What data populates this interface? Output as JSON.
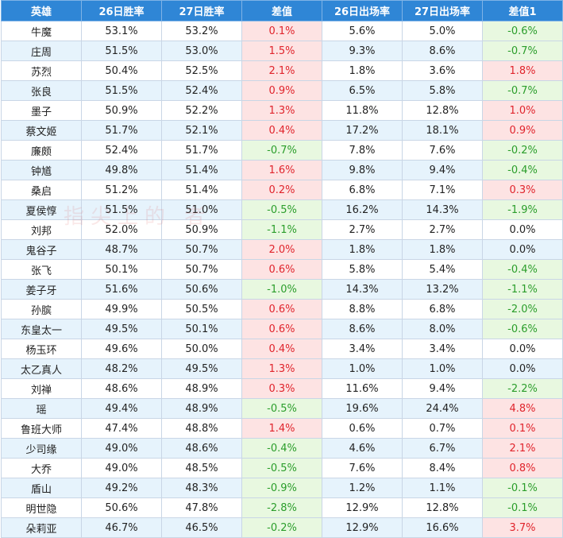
{
  "table": {
    "headers": [
      "英雄",
      "26日胜率",
      "27日胜率",
      "差值",
      "26日出场率",
      "27日出场率",
      "差值1"
    ],
    "rows": [
      [
        "牛魔",
        "53.1%",
        "53.2%",
        "0.1%",
        "5.6%",
        "5.0%",
        "-0.6%"
      ],
      [
        "庄周",
        "51.5%",
        "53.0%",
        "1.5%",
        "9.3%",
        "8.6%",
        "-0.7%"
      ],
      [
        "苏烈",
        "50.4%",
        "52.5%",
        "2.1%",
        "1.8%",
        "3.6%",
        "1.8%"
      ],
      [
        "张良",
        "51.5%",
        "52.4%",
        "0.9%",
        "6.5%",
        "5.8%",
        "-0.7%"
      ],
      [
        "墨子",
        "50.9%",
        "52.2%",
        "1.3%",
        "11.8%",
        "12.8%",
        "1.0%"
      ],
      [
        "蔡文姬",
        "51.7%",
        "52.1%",
        "0.4%",
        "17.2%",
        "18.1%",
        "0.9%"
      ],
      [
        "廉颇",
        "52.4%",
        "51.7%",
        "-0.7%",
        "7.8%",
        "7.6%",
        "-0.2%"
      ],
      [
        "钟馗",
        "49.8%",
        "51.4%",
        "1.6%",
        "9.8%",
        "9.4%",
        "-0.4%"
      ],
      [
        "桑启",
        "51.2%",
        "51.4%",
        "0.2%",
        "6.8%",
        "7.1%",
        "0.3%"
      ],
      [
        "夏侯惇",
        "51.5%",
        "51.0%",
        "-0.5%",
        "16.2%",
        "14.3%",
        "-1.9%"
      ],
      [
        "刘邦",
        "52.0%",
        "50.9%",
        "-1.1%",
        "2.7%",
        "2.7%",
        "0.0%"
      ],
      [
        "鬼谷子",
        "48.7%",
        "50.7%",
        "2.0%",
        "1.8%",
        "1.8%",
        "0.0%"
      ],
      [
        "张飞",
        "50.1%",
        "50.7%",
        "0.6%",
        "5.8%",
        "5.4%",
        "-0.4%"
      ],
      [
        "姜子牙",
        "51.6%",
        "50.6%",
        "-1.0%",
        "14.3%",
        "13.2%",
        "-1.1%"
      ],
      [
        "孙膑",
        "49.9%",
        "50.5%",
        "0.6%",
        "8.8%",
        "6.8%",
        "-2.0%"
      ],
      [
        "东皇太一",
        "49.5%",
        "50.1%",
        "0.6%",
        "8.6%",
        "8.0%",
        "-0.6%"
      ],
      [
        "杨玉环",
        "49.6%",
        "50.0%",
        "0.4%",
        "3.4%",
        "3.4%",
        "0.0%"
      ],
      [
        "太乙真人",
        "48.2%",
        "49.5%",
        "1.3%",
        "1.0%",
        "1.0%",
        "0.0%"
      ],
      [
        "刘禅",
        "48.6%",
        "48.9%",
        "0.3%",
        "11.6%",
        "9.4%",
        "-2.2%"
      ],
      [
        "瑶",
        "49.4%",
        "48.9%",
        "-0.5%",
        "19.6%",
        "24.4%",
        "4.8%"
      ],
      [
        "鲁班大师",
        "47.4%",
        "48.8%",
        "1.4%",
        "0.6%",
        "0.7%",
        "0.1%"
      ],
      [
        "少司缘",
        "49.0%",
        "48.6%",
        "-0.4%",
        "4.6%",
        "6.7%",
        "2.1%"
      ],
      [
        "大乔",
        "49.0%",
        "48.5%",
        "-0.5%",
        "7.6%",
        "8.4%",
        "0.8%"
      ],
      [
        "盾山",
        "49.2%",
        "48.3%",
        "-0.9%",
        "1.2%",
        "1.1%",
        "-0.1%"
      ],
      [
        "明世隐",
        "50.6%",
        "47.8%",
        "-2.8%",
        "12.9%",
        "12.8%",
        "-0.1%"
      ],
      [
        "朵莉亚",
        "46.7%",
        "46.5%",
        "-0.2%",
        "12.9%",
        "16.6%",
        "3.7%"
      ]
    ]
  },
  "watermark": "指尖上的  者",
  "colors": {
    "header_bg": "#2f86d6",
    "row_stripe": "#e6f3fc",
    "positive_text": "#e0242c",
    "positive_bg": "#fde3e3",
    "negative_text": "#2a9d2a",
    "negative_bg": "#e8f8e0"
  }
}
